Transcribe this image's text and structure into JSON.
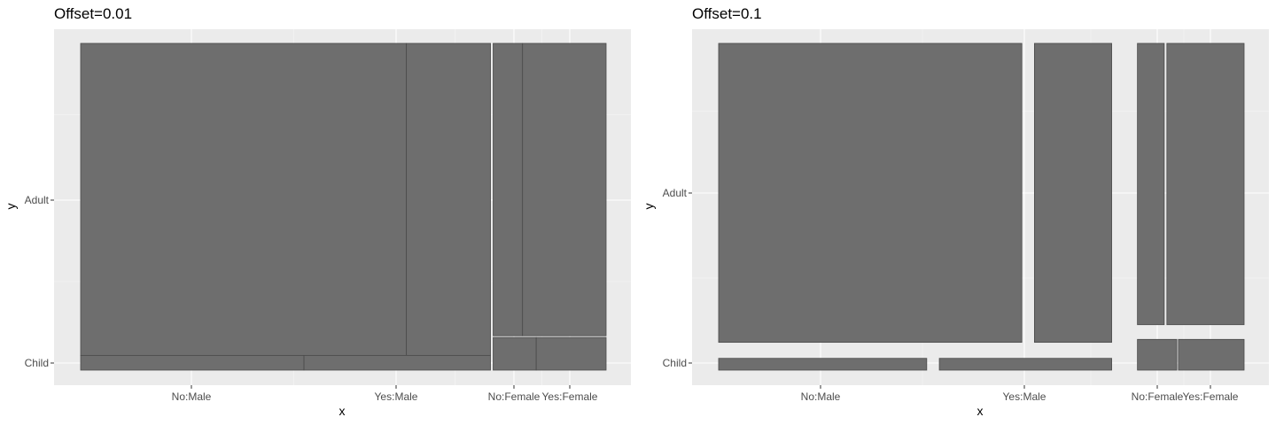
{
  "chart_data": [
    {
      "type": "mosaic",
      "title": "Offset=0.01",
      "xlabel": "x",
      "ylabel": "y",
      "x_ticks": [
        "No:Male",
        "Yes:Male",
        "No:Female",
        "Yes:Female"
      ],
      "y_ticks": [
        "Adult",
        "Child"
      ],
      "grid": true,
      "legend": "none",
      "offset": 0.01,
      "colors": {
        "panel": "#ebebeb",
        "tile": "#6e6e6e",
        "tile_border": "#4a4a4a",
        "grid": "#ffffff"
      },
      "tiles": [
        {
          "sex": "Male",
          "age": "Adult",
          "survived": "No",
          "x0": 0.0,
          "x1": 0.62,
          "y0": 0.045,
          "y1": 1.0
        },
        {
          "sex": "Male",
          "age": "Adult",
          "survived": "Yes",
          "x0": 0.62,
          "x1": 0.78,
          "y0": 0.045,
          "y1": 1.0
        },
        {
          "sex": "Male",
          "age": "Child",
          "survived": "No",
          "x0": 0.0,
          "x1": 0.425,
          "y0": 0.0,
          "y1": 0.045
        },
        {
          "sex": "Male",
          "age": "Child",
          "survived": "Yes",
          "x0": 0.425,
          "x1": 0.78,
          "y0": 0.0,
          "y1": 0.045
        },
        {
          "sex": "Female",
          "age": "Adult",
          "survived": "No",
          "x0": 0.785,
          "x1": 0.841,
          "y0": 0.105,
          "y1": 1.0
        },
        {
          "sex": "Female",
          "age": "Adult",
          "survived": "Yes",
          "x0": 0.841,
          "x1": 1.0,
          "y0": 0.105,
          "y1": 1.0
        },
        {
          "sex": "Female",
          "age": "Child",
          "survived": "No",
          "x0": 0.785,
          "x1": 0.867,
          "y0": 0.0,
          "y1": 0.1
        },
        {
          "sex": "Female",
          "age": "Child",
          "survived": "Yes",
          "x0": 0.867,
          "x1": 1.0,
          "y0": 0.0,
          "y1": 0.1
        }
      ]
    },
    {
      "type": "mosaic",
      "title": "Offset=0.1",
      "xlabel": "x",
      "ylabel": "y",
      "x_ticks": [
        "No:Male",
        "Yes:Male",
        "No:Female",
        "Yes:Female"
      ],
      "y_ticks": [
        "Adult",
        "Child"
      ],
      "grid": true,
      "legend": "none",
      "offset": 0.1,
      "colors": {
        "panel": "#ebebeb",
        "tile": "#6e6e6e",
        "tile_border": "#4a4a4a",
        "grid": "#ffffff"
      },
      "tiles": [
        {
          "sex": "Male",
          "age": "Adult",
          "survived": "No",
          "x0": 0.0,
          "x1": 0.577,
          "y0": 0.085,
          "y1": 1.0
        },
        {
          "sex": "Male",
          "age": "Adult",
          "survived": "Yes",
          "x0": 0.601,
          "x1": 0.748,
          "y0": 0.085,
          "y1": 1.0
        },
        {
          "sex": "Male",
          "age": "Child",
          "survived": "No",
          "x0": 0.0,
          "x1": 0.396,
          "y0": 0.0,
          "y1": 0.036
        },
        {
          "sex": "Male",
          "age": "Child",
          "survived": "Yes",
          "x0": 0.42,
          "x1": 0.748,
          "y0": 0.0,
          "y1": 0.036
        },
        {
          "sex": "Female",
          "age": "Adult",
          "survived": "No",
          "x0": 0.797,
          "x1": 0.848,
          "y0": 0.139,
          "y1": 1.0
        },
        {
          "sex": "Female",
          "age": "Adult",
          "survived": "Yes",
          "x0": 0.853,
          "x1": 1.0,
          "y0": 0.139,
          "y1": 1.0
        },
        {
          "sex": "Female",
          "age": "Child",
          "survived": "No",
          "x0": 0.797,
          "x1": 0.872,
          "y0": 0.0,
          "y1": 0.094
        },
        {
          "sex": "Female",
          "age": "Child",
          "survived": "Yes",
          "x0": 0.875,
          "x1": 1.0,
          "y0": 0.0,
          "y1": 0.094
        }
      ]
    }
  ]
}
